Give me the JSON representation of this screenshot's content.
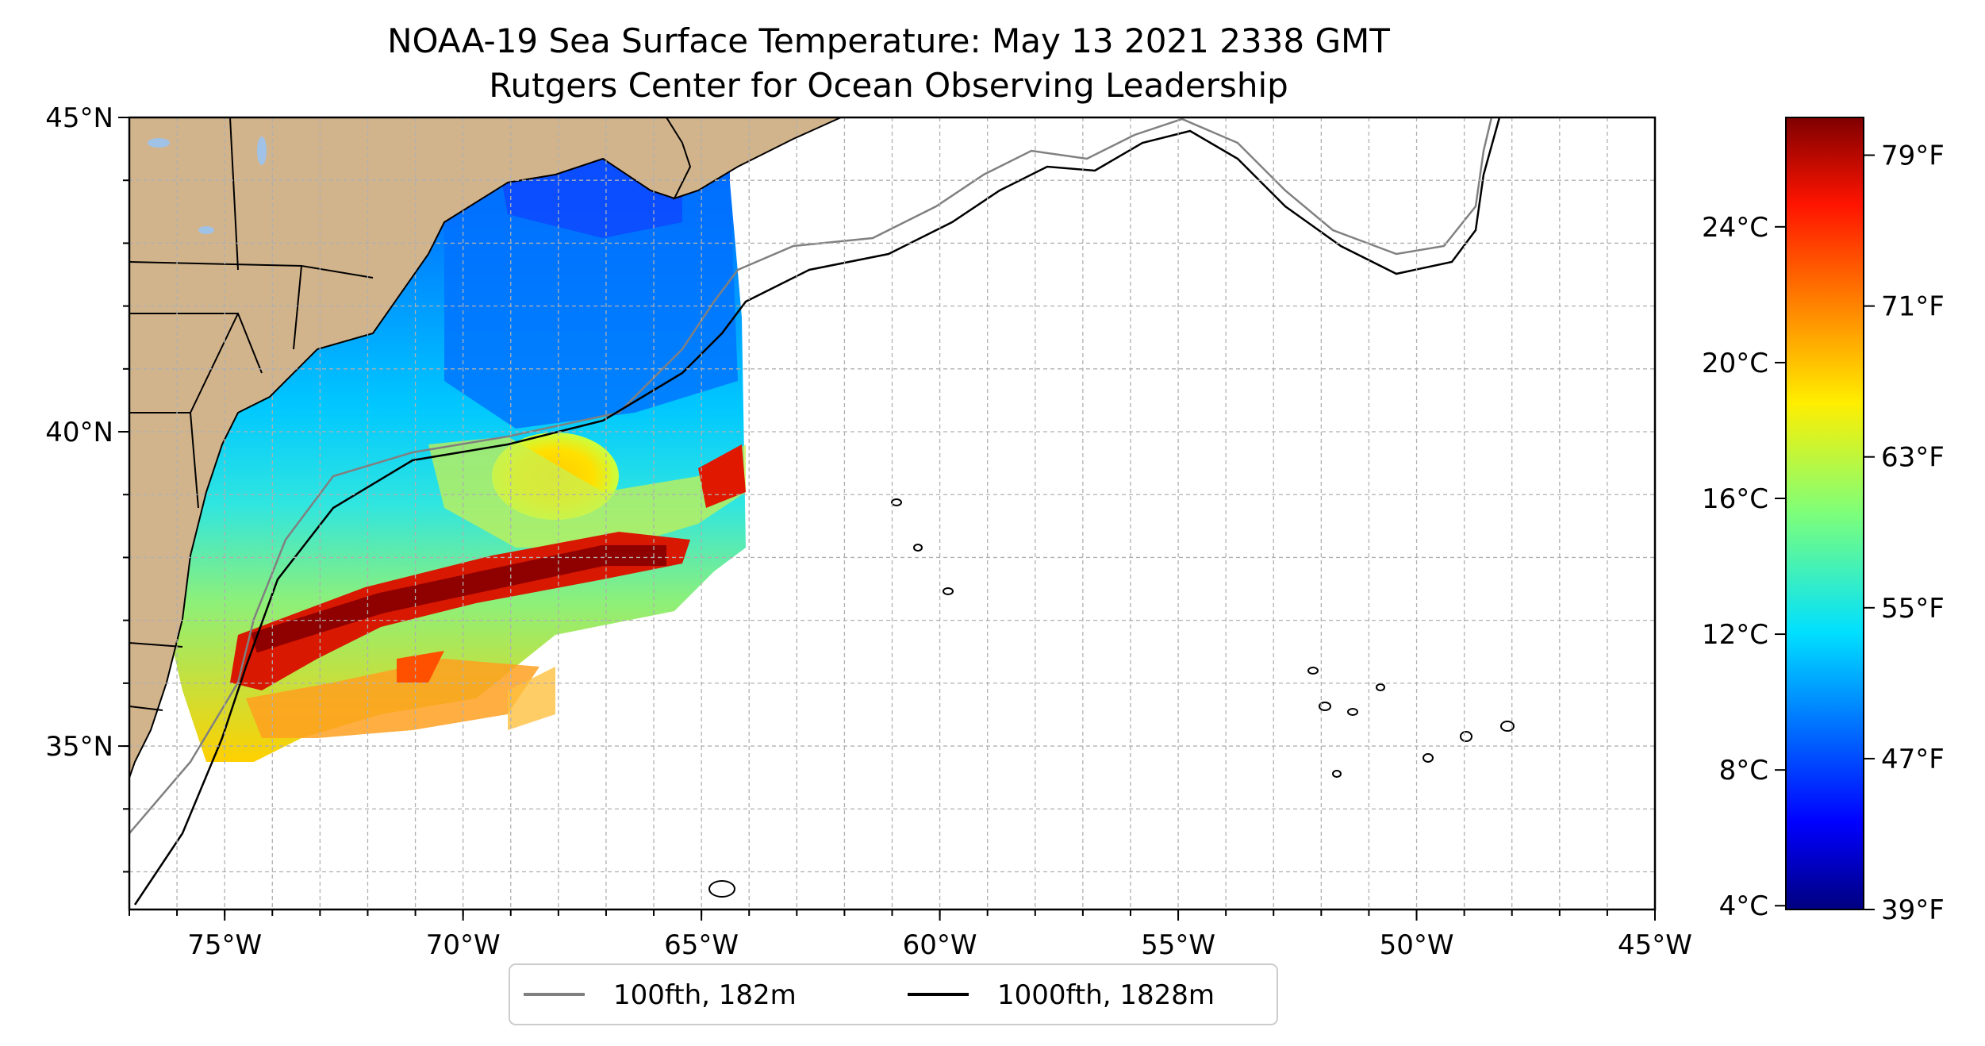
{
  "title": {
    "line1": "NOAA-19 Sea Surface Temperature: May 13 2021 2338 GMT",
    "line2": "Rutgers Center for Ocean Observing Leadership"
  },
  "map": {
    "lat_range": [
      32.4,
      45
    ],
    "lon_range": [
      -77,
      -45
    ],
    "lat_ticks": [
      {
        "value": 45,
        "label": "45°N"
      },
      {
        "value": 40,
        "label": "40°N"
      },
      {
        "value": 35,
        "label": "35°N"
      }
    ],
    "lon_ticks": [
      {
        "value": -75,
        "label": "75°W"
      },
      {
        "value": -70,
        "label": "70°W"
      },
      {
        "value": -65,
        "label": "65°W"
      },
      {
        "value": -60,
        "label": "60°W"
      },
      {
        "value": -55,
        "label": "55°W"
      },
      {
        "value": -50,
        "label": "50°W"
      },
      {
        "value": -45,
        "label": "45°W"
      }
    ],
    "grid": true,
    "colors": {
      "land": "#d2b48c",
      "ocean": "#ffffff",
      "grid": "#b0b0b0"
    }
  },
  "colorbar": {
    "colormap": "jet",
    "celsius_ticks": [
      {
        "value": 24,
        "label": "24°C"
      },
      {
        "value": 20,
        "label": "20°C"
      },
      {
        "value": 16,
        "label": "16°C"
      },
      {
        "value": 12,
        "label": "12°C"
      },
      {
        "value": 8,
        "label": "8°C"
      },
      {
        "value": 4,
        "label": "4°C"
      }
    ],
    "fahrenheit_ticks": [
      {
        "value": 79,
        "label": "79°F"
      },
      {
        "value": 71,
        "label": "71°F"
      },
      {
        "value": 63,
        "label": "63°F"
      },
      {
        "value": 55,
        "label": "55°F"
      },
      {
        "value": 47,
        "label": "47°F"
      },
      {
        "value": 39,
        "label": "39°F"
      }
    ],
    "range_f": [
      39,
      81
    ]
  },
  "legend": {
    "items": [
      {
        "label": "100fth, 182m",
        "color": "#808080"
      },
      {
        "label": "1000fth, 1828m",
        "color": "#000000"
      }
    ]
  }
}
